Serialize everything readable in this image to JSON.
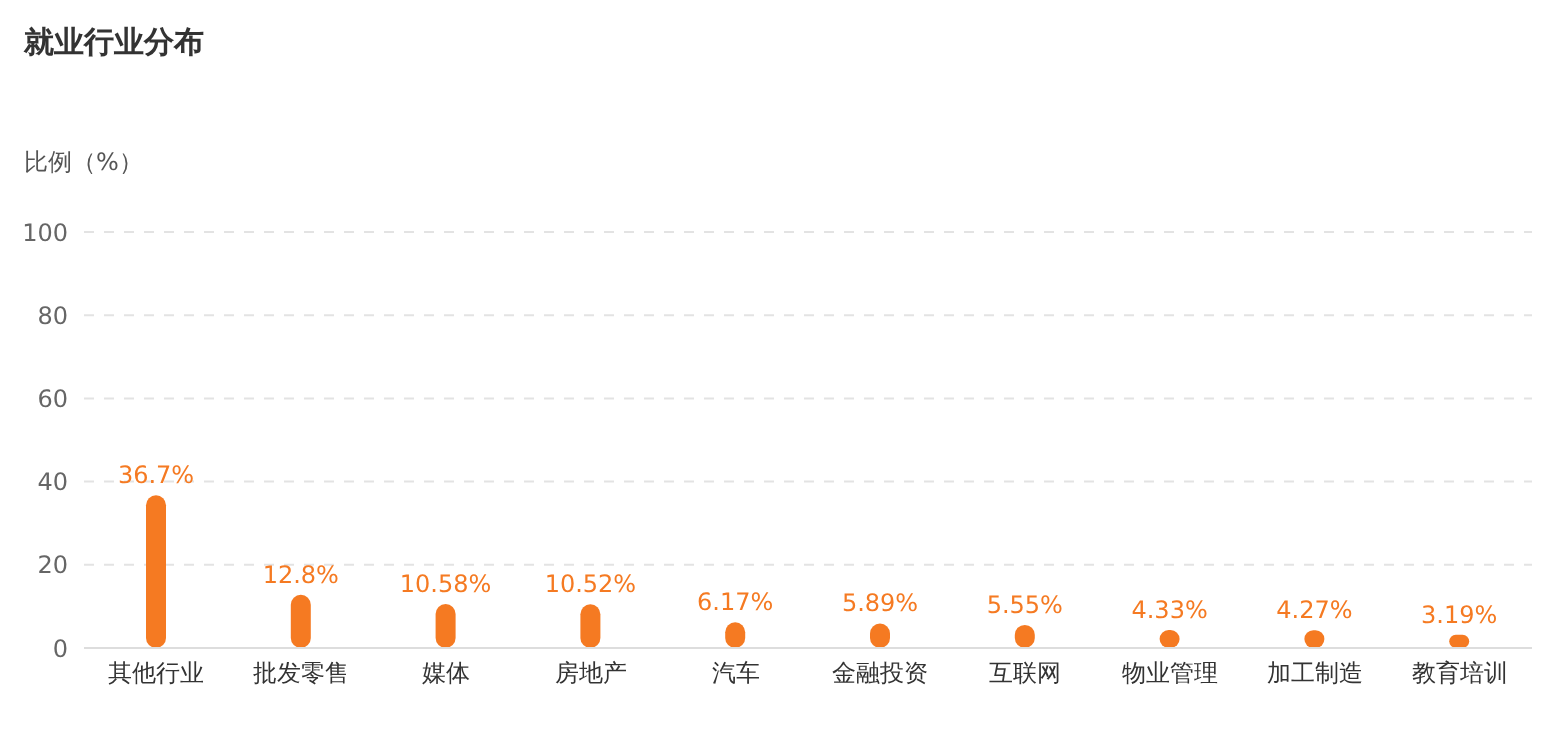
{
  "chart_data": {
    "type": "bar",
    "title": "就业行业分布",
    "ylabel": "比例（%）",
    "categories": [
      "其他行业",
      "批发零售",
      "媒体",
      "房地产",
      "汽车",
      "金融投资",
      "互联网",
      "物业管理",
      "加工制造",
      "教育培训"
    ],
    "values": [
      36.7,
      12.8,
      10.58,
      10.52,
      6.17,
      5.89,
      5.55,
      4.33,
      4.27,
      3.19
    ],
    "value_labels": [
      "36.7%",
      "12.8%",
      "10.58%",
      "10.52%",
      "6.17%",
      "5.89%",
      "5.55%",
      "4.33%",
      "4.27%",
      "3.19%"
    ],
    "color": "#f57a22",
    "ylim": [
      0,
      100
    ],
    "yticks": [
      0,
      20,
      40,
      60,
      80,
      100
    ],
    "grid": "y"
  }
}
